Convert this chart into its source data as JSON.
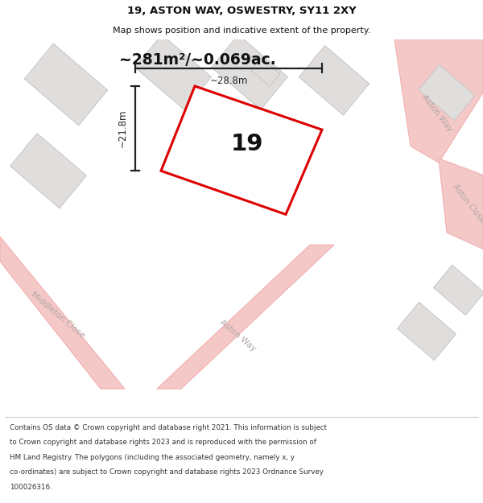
{
  "title": "19, ASTON WAY, OSWESTRY, SY11 2XY",
  "subtitle": "Map shows position and indicative extent of the property.",
  "area_label": "~281m²/~0.069ac.",
  "plot_number": "19",
  "dim_width": "~28.8m",
  "dim_height": "~21.8m",
  "footer_lines": [
    "Contains OS data © Crown copyright and database right 2021. This information is subject",
    "to Crown copyright and database rights 2023 and is reproduced with the permission of",
    "HM Land Registry. The polygons (including the associated geometry, namely x, y",
    "co-ordinates) are subject to Crown copyright and database rights 2023 Ordnance Survey",
    "100026316."
  ],
  "map_bg": "#eceae8",
  "road_color": "#f5c8c8",
  "road_edge": "#f0b0b0",
  "building_color": "#e0dedd",
  "building_edge": "#c8c4c2",
  "plot_fill": "#ffffff",
  "plot_outline_color": "#dd0000",
  "dim_color": "#222222",
  "text_color": "#111111",
  "road_label_color": "#b0a8a5",
  "footer_color": "#333333"
}
